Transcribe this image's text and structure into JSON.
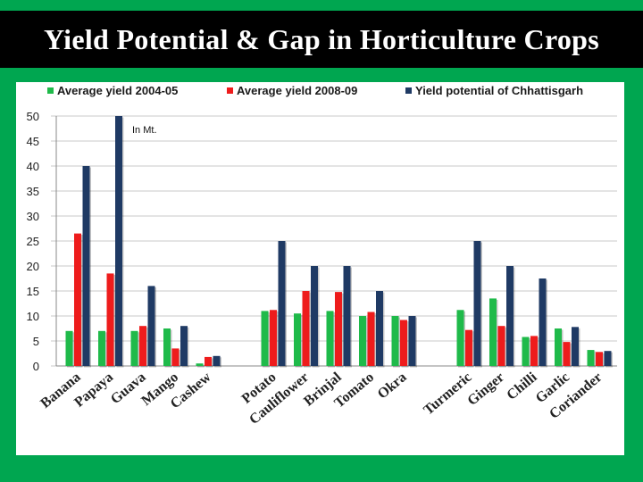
{
  "title": "Yield Potential & Gap in Horticulture Crops",
  "colors": {
    "background": "#00a650",
    "title_bar": "#000000",
    "series": [
      "#1fba4a",
      "#ee1c1c",
      "#1f3a64"
    ]
  },
  "chart_data": {
    "type": "bar",
    "unit_note": "In Mt.",
    "ylim": [
      0,
      50
    ],
    "yticks": [
      0,
      5,
      10,
      15,
      20,
      25,
      30,
      35,
      40,
      45,
      50
    ],
    "grid": true,
    "legend_position": "top",
    "categories": [
      "Banana",
      "Papaya",
      "Guava",
      "Mango",
      "Cashew",
      "Potato",
      "Cauliflower",
      "Brinjal",
      "Tomato",
      "Okra",
      "Turmeric",
      "Ginger",
      "Chilli",
      "Garlic",
      "Coriander"
    ],
    "groups": [
      5,
      5,
      5
    ],
    "series": [
      {
        "name": "Average yield 2004-05",
        "values": [
          7,
          7,
          7,
          7.5,
          0.5,
          11,
          10.5,
          11,
          10,
          10,
          11.2,
          13.5,
          5.8,
          7.5,
          3.2
        ]
      },
      {
        "name": "Average yield 2008-09",
        "values": [
          26.5,
          18.5,
          8,
          3.5,
          1.8,
          11.2,
          15,
          14.8,
          10.8,
          9.2,
          7.2,
          8,
          6,
          4.8,
          2.8
        ]
      },
      {
        "name": "Yield potential of Chhattisgarh",
        "values": [
          40,
          50,
          16,
          8,
          2,
          25,
          20,
          20,
          15,
          10,
          25,
          20,
          17.5,
          7.8,
          3
        ]
      }
    ]
  }
}
